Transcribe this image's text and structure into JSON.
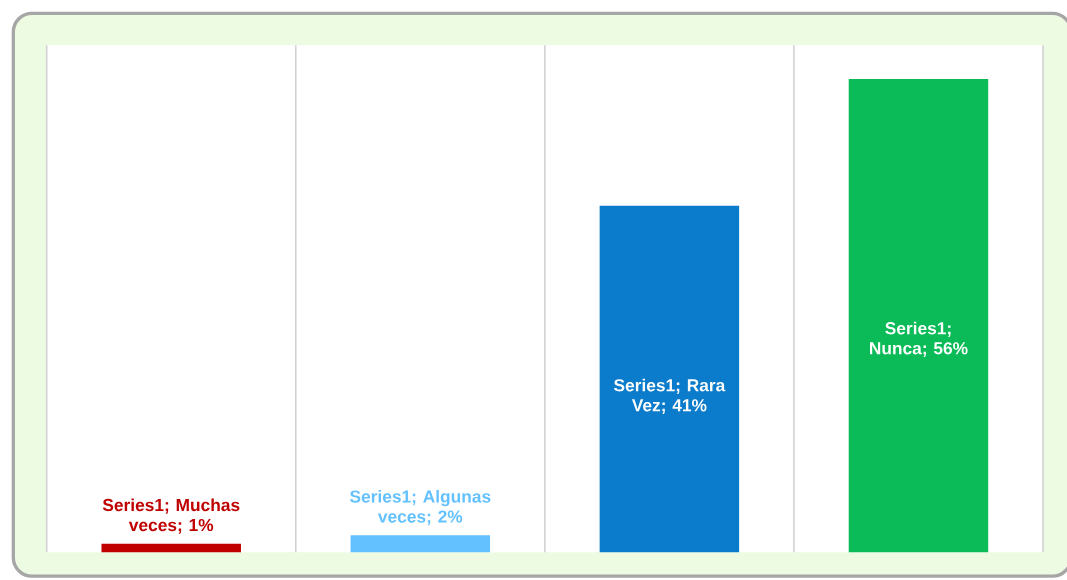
{
  "chart_data": {
    "type": "bar",
    "categories": [
      null,
      null,
      null,
      null
    ],
    "values": [
      1,
      2,
      41,
      56
    ],
    "colors": [
      "#c00000",
      "#63c1ff",
      "#0b7bcb",
      "#0abb57"
    ],
    "value_labels": [
      "Series1; Muchas veces; 1%",
      "Series1; Algunas veces; 2%",
      "Series1; Rara Vez; 41%",
      "Series1; Nunca; 56%"
    ],
    "ylim": [
      0,
      60
    ],
    "tick_labels": false,
    "grid": "x"
  }
}
